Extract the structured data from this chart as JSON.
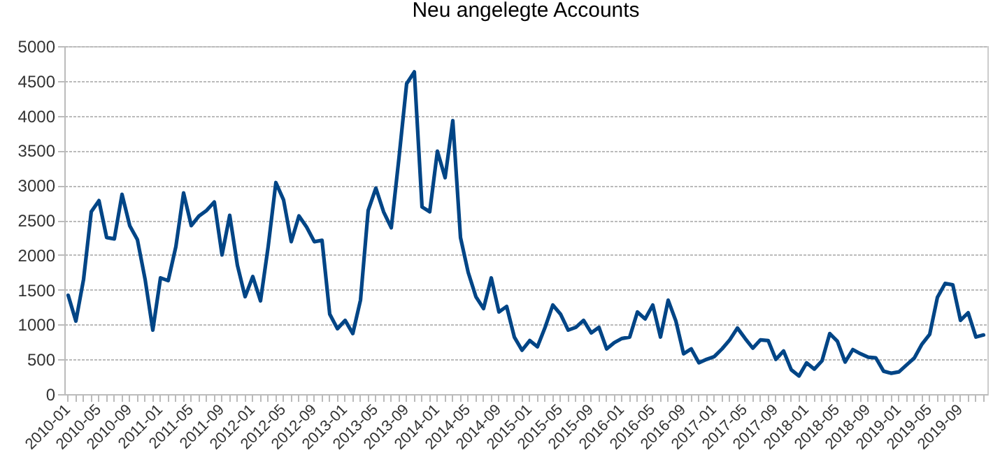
{
  "chart_data": {
    "type": "line",
    "title": "Neu angelegte Accounts",
    "categories": [
      "2010-01",
      null,
      null,
      null,
      "2010-05",
      null,
      null,
      null,
      "2010-09",
      null,
      null,
      null,
      "2011-01",
      null,
      null,
      null,
      "2011-05",
      null,
      null,
      null,
      "2011-09",
      null,
      null,
      null,
      "2012-01",
      null,
      null,
      null,
      "2012-05",
      null,
      null,
      null,
      "2012-09",
      null,
      null,
      null,
      "2013-01",
      null,
      null,
      null,
      "2013-05",
      null,
      null,
      null,
      "2013-09",
      null,
      null,
      null,
      "2014-01",
      null,
      null,
      null,
      "2014-05",
      null,
      null,
      null,
      "2014-09",
      null,
      null,
      null,
      "2015-01",
      null,
      null,
      null,
      "2015-05",
      null,
      null,
      null,
      "2015-09",
      null,
      null,
      null,
      "2016-01",
      null,
      null,
      null,
      "2016-05",
      null,
      null,
      null,
      "2016-09",
      null,
      null,
      null,
      "2017-01",
      null,
      null,
      null,
      "2017-05",
      null,
      null,
      null,
      "2017-09",
      null,
      null,
      null,
      "2018-01",
      null,
      null,
      null,
      "2018-05",
      null,
      null,
      null,
      "2018-09",
      null,
      null,
      null,
      "2019-01",
      null,
      null,
      null,
      "2019-05",
      null,
      null,
      null,
      "2019-09",
      null,
      null,
      null
    ],
    "series": [
      {
        "color": "#004586",
        "values": [
          1420,
          1050,
          1650,
          2620,
          2780,
          2250,
          2230,
          2870,
          2420,
          2220,
          1650,
          920,
          1670,
          1630,
          2120,
          2890,
          2420,
          2560,
          2640,
          2760,
          2000,
          2570,
          1850,
          1400,
          1690,
          1340,
          2120,
          3040,
          2790,
          2190,
          2560,
          2400,
          2190,
          2210,
          1150,
          940,
          1060,
          870,
          1350,
          2640,
          2960,
          2620,
          2390,
          3390,
          4460,
          4630,
          2690,
          2620,
          3490,
          3110,
          3930,
          2250,
          1750,
          1400,
          1230,
          1670,
          1180,
          1260,
          820,
          630,
          770,
          680,
          960,
          1280,
          1150,
          920,
          960,
          1060,
          880,
          960,
          650,
          740,
          800,
          820,
          1180,
          1080,
          1280,
          820,
          1350,
          1050,
          580,
          650,
          450,
          500,
          540,
          650,
          780,
          950,
          800,
          660,
          780,
          770,
          500,
          620,
          350,
          260,
          450,
          360,
          480,
          870,
          760,
          460,
          640,
          580,
          530,
          520,
          330,
          300,
          320,
          420,
          520,
          720,
          860,
          1390,
          1590,
          1570,
          1060,
          1170,
          820,
          850
        ]
      }
    ],
    "ylim": [
      0,
      5000
    ],
    "yticks": [
      0,
      500,
      1000,
      1500,
      2000,
      2500,
      3000,
      3500,
      4000,
      4500,
      5000
    ],
    "grid": "y",
    "marker": "none",
    "line_style": "solid"
  }
}
